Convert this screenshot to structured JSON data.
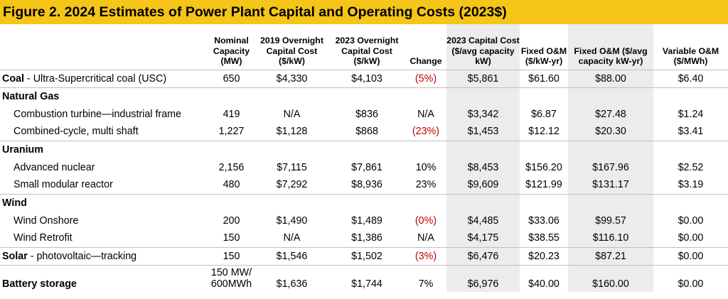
{
  "title": "Figure 2. 2024 Estimates of Power Plant Capital and Operating Costs (2023$)",
  "colors": {
    "title_bg": "#f5c518",
    "negative": "#c00000",
    "shade": "#ececec",
    "rule": "#bfbfbf"
  },
  "headers": [
    "",
    "Nominal Capacity (MW)",
    "2019 Overnight Capital Cost ($/kW)",
    "2023 Overnight Capital Cost ($/kW)",
    "Change",
    "2023 Capital Cost ($/avg capacity kW)",
    "Fixed O&M ($/kW-yr)",
    "Fixed O&M ($/avg capacity kW-yr)",
    "Variable O&M ($/MWh)"
  ],
  "rows": {
    "coal": {
      "bold": "Coal",
      "rest": " - Ultra-Supercritical coal (USC)",
      "cells": [
        "650",
        "$4,330",
        "$4,103",
        "(5%)",
        "$5,861",
        "$61.60",
        "$88.00",
        "$6.40"
      ]
    },
    "natural_gas": {
      "label": "Natural Gas"
    },
    "combustion_turbine": {
      "label": "Combustion turbine—industrial frame",
      "cells": [
        "419",
        "N/A",
        "$836",
        "N/A",
        "$3,342",
        "$6.87",
        "$27.48",
        "$1.24"
      ]
    },
    "combined_cycle": {
      "label": "Combined-cycle, multi shaft",
      "cells": [
        "1,227",
        "$1,128",
        "$868",
        "(23%)",
        "$1,453",
        "$12.12",
        "$20.30",
        "$3.41"
      ]
    },
    "uranium": {
      "label": "Uranium"
    },
    "advanced_nuclear": {
      "label": "Advanced nuclear",
      "cells": [
        "2,156",
        "$7,115",
        "$7,861",
        "10%",
        "$8,453",
        "$156.20",
        "$167.96",
        "$2.52"
      ]
    },
    "smr": {
      "label": "Small modular reactor",
      "cells": [
        "480",
        "$7,292",
        "$8,936",
        "23%",
        "$9,609",
        "$121.99",
        "$131.17",
        "$3.19"
      ]
    },
    "wind": {
      "label": "Wind"
    },
    "wind_onshore": {
      "label": "Wind Onshore",
      "cells": [
        "200",
        "$1,490",
        "$1,489",
        "(0%)",
        "$4,485",
        "$33.06",
        "$99.57",
        "$0.00"
      ]
    },
    "wind_retrofit": {
      "label": "Wind Retrofit",
      "cells": [
        "150",
        "N/A",
        "$1,386",
        "N/A",
        "$4,175",
        "$38.55",
        "$116.10",
        "$0.00"
      ]
    },
    "solar": {
      "bold": "Solar",
      "rest": " - photovoltaic—tracking",
      "cells": [
        "150",
        "$1,546",
        "$1,502",
        "(3%)",
        "$6,476",
        "$20.23",
        "$87.21",
        "$0.00"
      ]
    },
    "battery": {
      "label": "Battery storage",
      "capacity_line1": "150 MW/",
      "capacity_line2": "600MWh",
      "cells": [
        "",
        "$1,636",
        "$1,744",
        "7%",
        "$6,976",
        "$40.00",
        "$160.00",
        "$0.00"
      ]
    }
  }
}
